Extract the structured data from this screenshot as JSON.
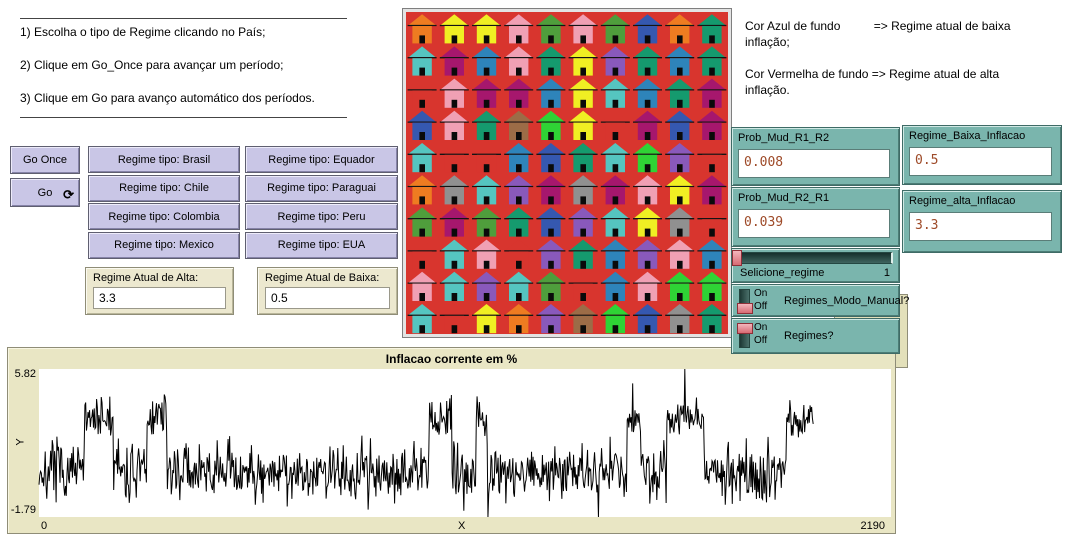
{
  "instructions": {
    "lines": [
      "1) Escolha o tipo de Regime clicando no País;",
      "2) Clique em Go_Once para avançar um período;",
      "3) Clique em Go para avanço automático dos períodos."
    ]
  },
  "buttons": {
    "go_once": "Go Once",
    "go": "Go",
    "forever_icon": "⟳",
    "regime": [
      "Regime tipo: Brasil",
      "Regime tipo: Chile",
      "Regime tipo: Colombia",
      "Regime tipo: Mexico",
      "Regime tipo: Equador",
      "Regime tipo: Paraguai",
      "Regime tipo: Peru",
      "Regime tipo: EUA"
    ]
  },
  "monitors": [
    {
      "label": "Regime Atual de Alta:",
      "value": "3.3"
    },
    {
      "label": "Regime Atual de Baixa:",
      "value": "0.5"
    }
  ],
  "legend": {
    "lines": [
      "Cor Azul de fundo          => Regime atual de baixa",
      "inflação;",
      "Cor Vermelha de fundo => Regime atual de alta",
      "inflação."
    ]
  },
  "inputs": [
    {
      "label": "Prob_Mud_R1_R2",
      "value": "0.008"
    },
    {
      "label": "Regime_Baixa_Inflacao",
      "value": "0.5"
    },
    {
      "label": "Prob_Mud_R2_R1",
      "value": "0.039"
    },
    {
      "label": "Regime_alta_Inflacao",
      "value": "3.3"
    }
  ],
  "slider": {
    "label": "Selicione_regime",
    "value": "1"
  },
  "switches": [
    {
      "label": "Regimes_Modo_Manual?",
      "on_label": "On",
      "off_label": "Off",
      "state": "off"
    },
    {
      "label": "Regimes?",
      "on_label": "On",
      "off_label": "Off",
      "state": "on"
    }
  ],
  "world": {
    "background": "#d8352e",
    "rows": 10,
    "cols": 10,
    "palette": {
      "red": "#d8352e",
      "orange": "#ee7c21",
      "yellow": "#f0ef23",
      "pink": "#f0a0b4",
      "green": "#4f9e3c",
      "lime": "#2fd335",
      "seagreen": "#159a6e",
      "cyan": "#55c5c0",
      "sky": "#2e84ba",
      "blue": "#3558b0",
      "violet": "#8959bb",
      "magenta": "#a6176d",
      "brown": "#9c6c47",
      "gray": "#909090",
      "door": "#0a0a0a"
    },
    "grid": [
      [
        "orange",
        "yellow",
        "yellow",
        "pink",
        "green",
        "pink",
        "green",
        "blue",
        "orange",
        "seagreen"
      ],
      [
        "cyan",
        "magenta",
        "sky",
        "pink",
        "seagreen",
        "yellow",
        "violet",
        "seagreen",
        "sky",
        "seagreen"
      ],
      [
        "red",
        "pink",
        "magenta",
        "magenta",
        "sky",
        "yellow",
        "cyan",
        "sky",
        "seagreen",
        "magenta"
      ],
      [
        "blue",
        "pink",
        "seagreen",
        "brown",
        "lime",
        "yellow",
        "red",
        "magenta",
        "blue",
        "magenta"
      ],
      [
        "cyan",
        "red",
        "red",
        "sky",
        "blue",
        "seagreen",
        "cyan",
        "lime",
        "violet",
        "red"
      ],
      [
        "orange",
        "gray",
        "cyan",
        "violet",
        "magenta",
        "gray",
        "magenta",
        "pink",
        "yellow",
        "magenta"
      ],
      [
        "green",
        "magenta",
        "green",
        "seagreen",
        "blue",
        "violet",
        "cyan",
        "yellow",
        "gray",
        "red"
      ],
      [
        "red",
        "cyan",
        "pink",
        "red",
        "violet",
        "seagreen",
        "sky",
        "violet",
        "pink",
        "sky"
      ],
      [
        "pink",
        "cyan",
        "violet",
        "cyan",
        "green",
        "red",
        "sky",
        "pink",
        "lime",
        "lime"
      ],
      [
        "cyan",
        "red",
        "yellow",
        "orange",
        "violet",
        "brown",
        "lime",
        "blue",
        "gray",
        "seagreen"
      ]
    ]
  },
  "colors": {
    "button_bg": "#c9c6e6",
    "widget_teal": "#7ab5ad",
    "monitor_beige": "#ece8cf",
    "plot_beige": "#e9e6c4",
    "input_value_text": "#9e4a28",
    "switch_knob": "#d76b74",
    "world_red": "#d8352e"
  },
  "chart_data": {
    "type": "line",
    "title": "Inflacao corrente em %",
    "xlabel": "X",
    "ylabel": "Y",
    "xlim": [
      0,
      2190
    ],
    "ylim": [
      -1.79,
      5.82
    ],
    "x_axis_labels": [
      "0",
      "X",
      "2190"
    ],
    "y_axis_labels": [
      "5.82",
      "-1.79"
    ],
    "grid": false,
    "legend_position": "none",
    "series": [
      {
        "name": "inflacao_corrente",
        "color": "#000000",
        "x_end": 1990,
        "x_step": 2,
        "low_regime_mean": 0.5,
        "high_regime_mean": 3.3,
        "noise_amplitude": 1.4,
        "high_segments": [
          [
            118,
            190
          ],
          [
            277,
            328
          ],
          [
            1004,
            1060
          ],
          [
            1124,
            1152
          ],
          [
            1511,
            1547
          ],
          [
            1613,
            1708
          ],
          [
            1921,
            1990
          ]
        ],
        "max_point_x": 1660,
        "min_point_x": 1154,
        "seed": 7
      }
    ]
  }
}
